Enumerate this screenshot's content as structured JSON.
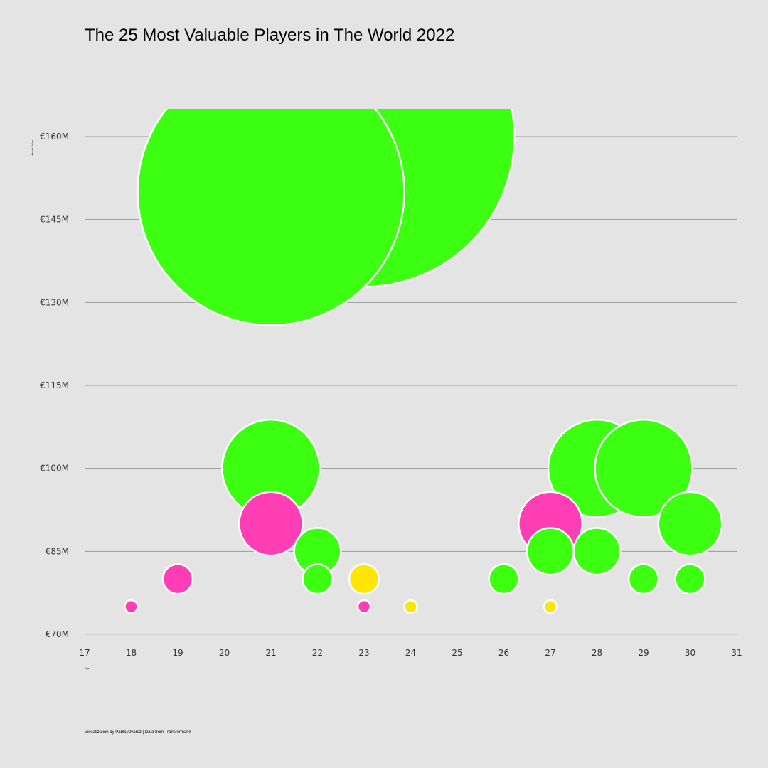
{
  "chart_data": {
    "type": "scatter",
    "title": "The 25 Most Valuable Players in The World 2022",
    "xlabel": "Age",
    "ylabel": "Market Value",
    "footer": "Visualization by Pablo Alvarez | Data from Transfermarkt",
    "x_ticks": [
      "17",
      "18",
      "19",
      "20",
      "21",
      "22",
      "23",
      "24",
      "25",
      "26",
      "27",
      "28",
      "29",
      "30",
      "31"
    ],
    "y_ticks": [
      "€70M",
      "€85M",
      "€100M",
      "€115M",
      "€130M",
      "€145M",
      "€160M"
    ],
    "xlim": [
      17,
      31
    ],
    "ylim": [
      70,
      160
    ],
    "grid": true,
    "colors": {
      "green": "#3cff12",
      "pink": "#ff3eb5",
      "yellow": "#ffe600",
      "grid": "#999999",
      "bubble_stroke": "#ffffff"
    },
    "points": [
      {
        "x": 23,
        "y": 160,
        "color": "green"
      },
      {
        "x": 21,
        "y": 150,
        "color": "green"
      },
      {
        "x": 21,
        "y": 100,
        "color": "green"
      },
      {
        "x": 28,
        "y": 100,
        "color": "green"
      },
      {
        "x": 29,
        "y": 100,
        "color": "green"
      },
      {
        "x": 21,
        "y": 90,
        "color": "pink"
      },
      {
        "x": 27,
        "y": 90,
        "color": "pink"
      },
      {
        "x": 30,
        "y": 90,
        "color": "green"
      },
      {
        "x": 22,
        "y": 85,
        "color": "green"
      },
      {
        "x": 27,
        "y": 85,
        "color": "green"
      },
      {
        "x": 28,
        "y": 85,
        "color": "green"
      },
      {
        "x": 19,
        "y": 80,
        "color": "pink"
      },
      {
        "x": 22,
        "y": 80,
        "color": "green"
      },
      {
        "x": 23,
        "y": 80,
        "color": "yellow"
      },
      {
        "x": 26,
        "y": 80,
        "color": "green"
      },
      {
        "x": 29,
        "y": 80,
        "color": "green"
      },
      {
        "x": 30,
        "y": 80,
        "color": "green"
      },
      {
        "x": 18,
        "y": 75,
        "color": "pink"
      },
      {
        "x": 23,
        "y": 75,
        "color": "pink"
      },
      {
        "x": 24,
        "y": 75,
        "color": "yellow"
      },
      {
        "x": 27,
        "y": 75,
        "color": "yellow"
      }
    ]
  }
}
